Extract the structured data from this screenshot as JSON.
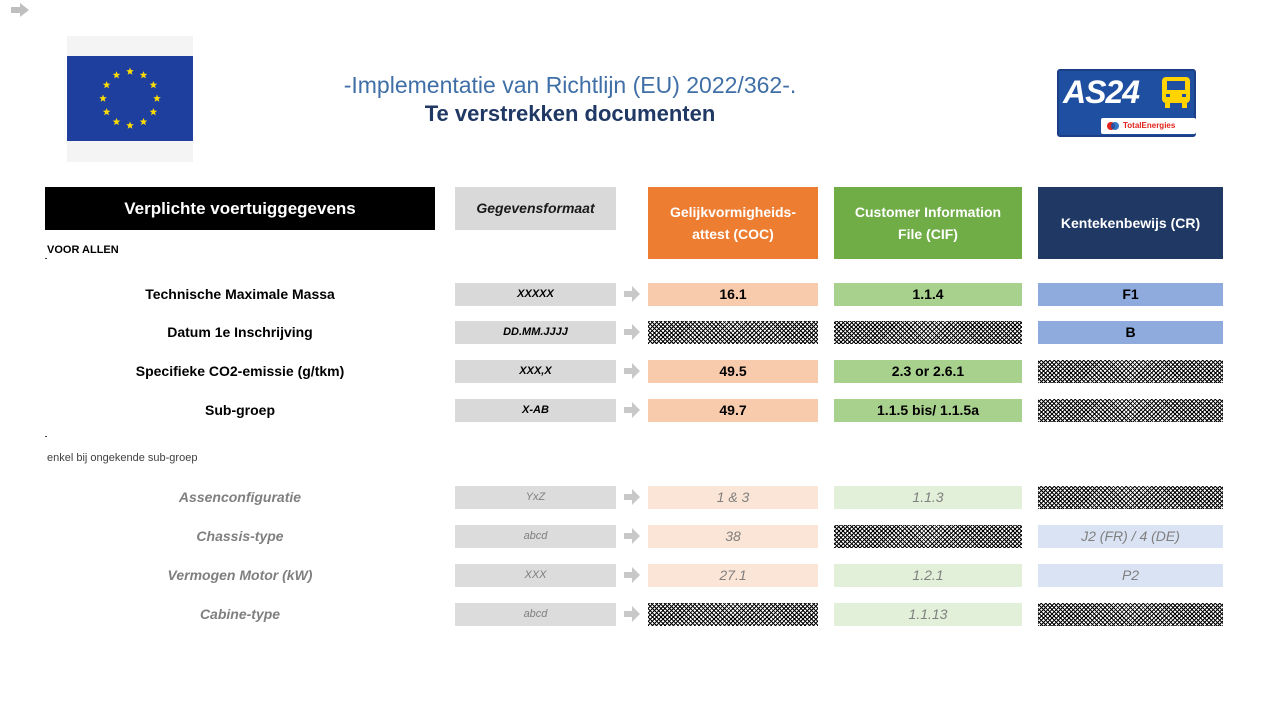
{
  "icons": {
    "nav": "right-arrow-icon",
    "flag": "eu-flag-icon",
    "logo": "as24-logo"
  },
  "colors": {
    "coc": "#ed7d31",
    "cif": "#70ad47",
    "cr": "#1f3864",
    "title": "#1f3864"
  },
  "header": {
    "title_line1": "-Implementatie van Richtlijn (EU) 2022/362-.",
    "title_line2": "Te verstrekken documenten",
    "logo_text": "AS24",
    "logo_subtext": "TotalEnergies"
  },
  "table": {
    "main_header": "Verplichte voertuiggegevens",
    "format_header": "Gegevensformaat",
    "coc_header": "Gelijkvormigheids-attest (COC)",
    "cif_header": "Customer Information File (CIF)",
    "cr_header": "Kentekenbewijs (CR)",
    "section_all": "VOOR ALLEN",
    "section_sub": "enkel bij ongekende sub-groep",
    "rows": [
      {
        "label": "Technische Maximale Massa",
        "format": "XXXXX",
        "coc": "16.1",
        "cif": "1.1.4",
        "cr": "F1"
      },
      {
        "label": "Datum 1e Inschrijving",
        "format": "DD.MM.JJJJ",
        "coc": "",
        "cif": "",
        "cr": "B"
      },
      {
        "label": "Specifieke CO2-emissie (g/tkm)",
        "format": "XXX,X",
        "coc": "49.5",
        "cif": "2.3 or 2.6.1",
        "cr": ""
      },
      {
        "label": "Sub-groep",
        "format": "X-AB",
        "coc": "49.7",
        "cif": "1.1.5 bis/ 1.1.5a",
        "cr": ""
      },
      {
        "label": "Assenconfiguratie",
        "format": "YxZ",
        "coc": "1 & 3",
        "cif": "1.1.3",
        "cr": ""
      },
      {
        "label": "Chassis-type",
        "format": "abcd",
        "coc": "38",
        "cif": "",
        "cr": "J2 (FR) / 4 (DE)"
      },
      {
        "label": "Vermogen Motor (kW)",
        "format": "XXX",
        "coc": "27.1",
        "cif": "1.2.1",
        "cr": "P2"
      },
      {
        "label": "Cabine-type",
        "format": "abcd",
        "coc": "",
        "cif": "1.1.13",
        "cr": ""
      }
    ]
  }
}
